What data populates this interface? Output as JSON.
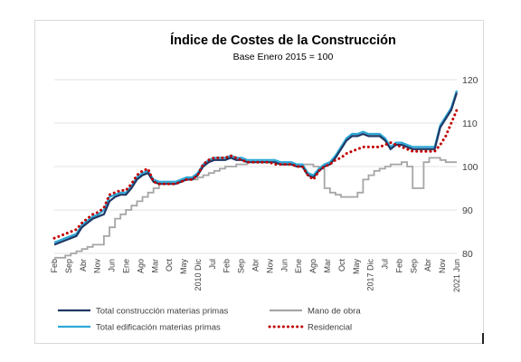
{
  "chart_data": {
    "type": "line",
    "title": "Índice de Costes de la Construcción",
    "subtitle": "Base Enero 2015 = 100",
    "xlabel": "",
    "ylabel": "",
    "ylim": [
      80,
      120
    ],
    "yticks": [
      80,
      90,
      100,
      110,
      120
    ],
    "y_axis_side": "right",
    "grid": "horizontal",
    "legend_position": "bottom",
    "x": [
      "Feb",
      "May",
      "Ago",
      "Nov",
      "Feb",
      "May",
      "Ago",
      "Nov",
      "Feb",
      "May",
      "Ago",
      "Nov",
      "Feb",
      "May",
      "Ago",
      "Nov",
      "Feb",
      "May",
      "Ago",
      "Nov",
      "Feb",
      "May",
      "Ago",
      "Nov",
      "Feb",
      "May",
      "Ago",
      "Nov",
      "Feb",
      "May",
      "Ago",
      "Nov",
      "Feb",
      "May",
      "Ago",
      "Nov",
      "Feb",
      "May",
      "Ago",
      "Nov",
      "Feb",
      "May",
      "Ago",
      "Nov",
      "Feb",
      "May",
      "Ago",
      "Nov",
      "Feb",
      "May",
      "Ago",
      "Nov",
      "Feb",
      "May",
      "Ago",
      "Nov",
      "Feb",
      "May",
      "Ago",
      "Nov",
      "Feb",
      "May",
      "Ago",
      "Nov",
      "Feb",
      "May",
      "Ago",
      "Nov",
      "Feb",
      "May",
      "Ago",
      "Nov",
      "Feb",
      "May"
    ],
    "x_tick_labels": [
      "Feb",
      "May",
      "Sep",
      "Ene",
      "Abr",
      "Ago",
      "Nov",
      "Mar",
      "Jun",
      "Oct",
      "Ene",
      "May",
      "Ago",
      "Dic",
      "Mar",
      "Jul",
      "Oct",
      "Feb",
      "May",
      "Sep",
      "Dic",
      "Abr",
      "Jul",
      "Nov",
      "Feb",
      "Jun",
      "Sep",
      "Ene",
      "Abr",
      "Ago",
      "Nov",
      "Mar",
      "Jun",
      "Oct",
      "Ene",
      "May",
      "Ago",
      "Dic",
      "Mar",
      "Jul",
      "Oct",
      "Feb",
      "May",
      "Sep",
      "Dic",
      "Abr",
      "Jul",
      "Nov",
      "Feb",
      "Jun",
      "Sep",
      "Ene",
      "Abr",
      "Ago",
      "Nov",
      "Mar",
      "Jun",
      "Oct",
      "Ene",
      "May",
      "Ago",
      "Dic",
      "Mar",
      "Jul",
      "Oct",
      "Feb",
      "May",
      "Sep",
      "Dic",
      "Abr",
      "Jul",
      "Nov",
      "Feb",
      "Jun"
    ],
    "x_tick_visible": [
      "Feb",
      "Sep",
      "Abr",
      "Nov",
      "Jun",
      "Ene",
      "Ago",
      "Mar",
      "Oct",
      "May",
      "2010 Dic",
      "Jul",
      "Feb",
      "Sep",
      "Abr",
      "Nov",
      "Jun",
      "Ene",
      "Ago",
      "Mar",
      "Oct",
      "May",
      "2017 Dic",
      "Jul",
      "Feb",
      "Sep",
      "Abr",
      "Nov",
      "2021 Jun"
    ],
    "series": [
      {
        "name": "Total construcción materias primas",
        "color": "#1f3864",
        "style": "solid",
        "values": [
          82,
          82.5,
          83,
          83.5,
          84,
          86,
          87,
          88,
          88.5,
          89,
          92,
          93,
          93.5,
          93.5,
          95,
          97,
          98,
          98.5,
          96.5,
          96,
          96,
          96,
          96,
          96.5,
          97,
          97,
          98,
          100,
          101,
          101.5,
          101.5,
          101.5,
          102,
          101.5,
          101.5,
          101,
          101,
          101,
          101,
          101,
          101,
          100.5,
          100.5,
          100.5,
          100,
          100,
          98,
          97.5,
          99,
          100,
          100.5,
          102,
          104,
          106,
          107,
          107,
          107.5,
          107,
          107,
          107,
          106,
          104,
          105,
          105,
          104.5,
          104,
          104,
          104,
          104,
          104,
          109,
          111,
          113,
          117
        ]
      },
      {
        "name": "Total edificación materias primas",
        "color": "#2ea8d8",
        "style": "solid",
        "values": [
          82.5,
          83,
          83.5,
          84,
          84.5,
          86.5,
          87.5,
          88.5,
          89,
          90,
          93,
          93.5,
          94,
          94,
          95.5,
          97.5,
          98.5,
          99,
          97,
          96.5,
          96.5,
          96.5,
          96.5,
          97,
          97.5,
          97.5,
          98.5,
          100.5,
          101.5,
          102,
          102,
          102,
          102.5,
          102,
          102,
          101.5,
          101.5,
          101.5,
          101.5,
          101.5,
          101.5,
          101,
          101,
          101,
          100.5,
          100.5,
          98.5,
          98,
          99.5,
          100.5,
          101,
          102.5,
          104.5,
          106.5,
          107.5,
          107.5,
          108,
          107.5,
          107.5,
          107.5,
          106.5,
          104.5,
          105.5,
          105.5,
          105,
          104.5,
          104.5,
          104.5,
          104.5,
          104.5,
          109.5,
          111.5,
          113.5,
          117.5
        ]
      },
      {
        "name": "Mano de obra",
        "color": "#a6a6a6",
        "style": "solid",
        "values": [
          79,
          79,
          79.5,
          80,
          80.5,
          81,
          81.5,
          82,
          82,
          84,
          86,
          88,
          89,
          90,
          91,
          92,
          93,
          94,
          95,
          96,
          96.5,
          96.5,
          96.5,
          97,
          97,
          97,
          97.5,
          98,
          98.5,
          99,
          99.5,
          100,
          100,
          100.5,
          100.5,
          101,
          101,
          101,
          101,
          101,
          101,
          101,
          101,
          100.5,
          100.5,
          100.5,
          100.5,
          100,
          99.5,
          95,
          94,
          93.5,
          93,
          93,
          93,
          94,
          97,
          98,
          99,
          99.5,
          100,
          100.5,
          100.5,
          101,
          100,
          95,
          95,
          101,
          102,
          102,
          101.5,
          101,
          101,
          101
        ]
      },
      {
        "name": "Residencial",
        "color": "#c00000",
        "style": "dotted",
        "values": [
          83.5,
          84,
          84.5,
          85,
          85.5,
          87,
          88,
          89,
          89.5,
          90.5,
          93.5,
          94,
          94.5,
          94.5,
          96,
          98,
          99,
          99.5,
          96.5,
          96,
          96,
          96,
          96,
          96.5,
          97,
          97,
          98,
          100.5,
          101.5,
          102,
          102,
          102,
          102.5,
          102,
          101.5,
          101,
          101,
          101,
          101,
          101,
          100.5,
          100.5,
          100.5,
          100.5,
          100,
          100,
          98,
          97,
          99,
          100,
          100.5,
          101.5,
          102,
          103,
          103.5,
          104,
          104.5,
          104.5,
          104.5,
          104.5,
          105,
          105.5,
          105,
          104.5,
          104,
          103.5,
          103.5,
          103.5,
          103.5,
          103.5,
          105,
          107,
          110,
          113
        ]
      }
    ]
  }
}
